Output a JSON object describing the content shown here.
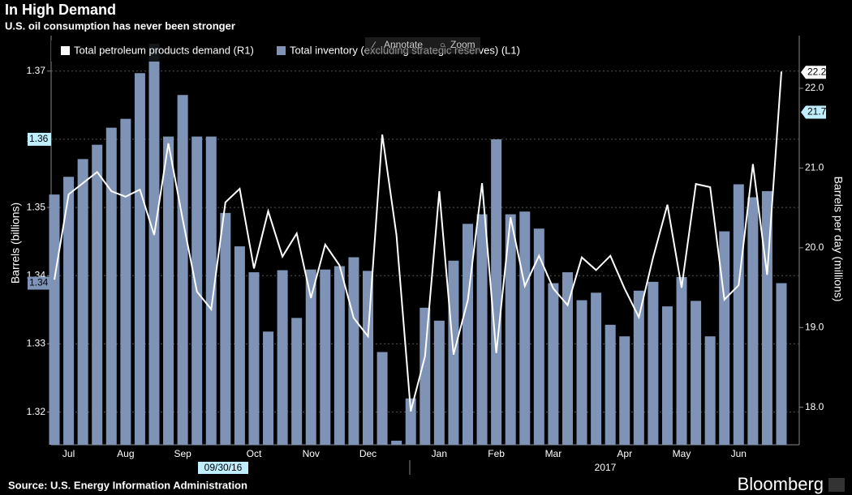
{
  "chart_data": {
    "type": "bar_line",
    "title": "In High Demand",
    "subtitle": "U.S. oil consumption has never been stronger",
    "y_label": "Barrels (billions)",
    "y2_label": "Barrels per day (millions)",
    "source": "Source: U.S. Energy Information Administration",
    "brand": "Bloomberg",
    "toolbar": [
      "Annotate",
      "Zoom"
    ],
    "year_label": "2017",
    "cursor_label": "09/30/16",
    "categories": [
      null,
      "Jul",
      null,
      null,
      null,
      "Aug",
      null,
      null,
      null,
      "Sep",
      null,
      null,
      null,
      null,
      "Oct",
      null,
      null,
      null,
      "Nov",
      null,
      null,
      null,
      "Dec",
      null,
      null,
      null,
      null,
      "Jan",
      null,
      null,
      null,
      "Feb",
      null,
      null,
      null,
      "Mar",
      null,
      null,
      null,
      null,
      "Apr",
      null,
      null,
      null,
      "May",
      null,
      null,
      null,
      "Jun",
      null,
      null,
      null
    ],
    "series": [
      {
        "name": "Total petroleum products demand (R1)",
        "color": "#ffffff",
        "axis": "y2",
        "kind": "line",
        "values": [
          19.6,
          20.67,
          20.81,
          20.95,
          20.71,
          20.64,
          20.73,
          20.16,
          21.31,
          20.36,
          19.45,
          19.23,
          20.57,
          20.74,
          19.74,
          20.46,
          19.89,
          20.18,
          19.37,
          20.04,
          19.78,
          19.12,
          18.89,
          21.42,
          20.16,
          17.95,
          18.64,
          20.71,
          18.66,
          19.34,
          20.81,
          18.68,
          20.38,
          19.52,
          19.9,
          19.49,
          19.28,
          19.88,
          19.72,
          19.9,
          19.49,
          19.13,
          19.88,
          20.54,
          19.5,
          20.8,
          20.76,
          19.35,
          19.53,
          21.05,
          19.66,
          22.21
        ]
      },
      {
        "name": "Total inventory (excluding strategic reserves) (L1)",
        "color": "#7f93b6",
        "axis": "y",
        "kind": "bar",
        "values": [
          1.3519,
          1.3545,
          1.3571,
          1.3592,
          1.3617,
          1.363,
          1.3697,
          1.374,
          1.3604,
          1.3665,
          1.3604,
          1.3604,
          1.3492,
          1.3443,
          1.3405,
          1.3318,
          1.3408,
          1.3338,
          1.3409,
          1.3409,
          1.3414,
          1.3427,
          1.3407,
          1.3288,
          1.3158,
          1.322,
          1.3353,
          1.3334,
          1.3422,
          1.3476,
          1.349,
          1.36,
          1.349,
          1.3494,
          1.3469,
          1.3389,
          1.3405,
          1.3364,
          1.3375,
          1.3328,
          1.3311,
          1.3378,
          1.3391,
          1.3355,
          1.3398,
          1.3363,
          1.3311,
          1.3465,
          1.3534,
          1.3515,
          1.3524,
          1.3389
        ]
      }
    ],
    "ylim": [
      1.3152,
      1.3752
    ],
    "yticks": [
      1.32,
      1.33,
      1.34,
      1.35,
      1.36,
      1.37
    ],
    "y2lim": [
      17.53,
      22.66
    ],
    "y2ticks": [
      {
        "value": 18,
        "label": "18.0"
      },
      {
        "value": 19,
        "label": "19.0"
      },
      {
        "value": 20,
        "label": "20.0"
      },
      {
        "value": 21,
        "label": "21.0"
      },
      {
        "value": 22,
        "label": "22.0"
      }
    ],
    "grid": true,
    "tags": [
      {
        "axis": "y",
        "value": 1.36,
        "label": "1.36",
        "color": "#bfefff"
      },
      {
        "axis": "y",
        "value": 1.3389,
        "label": "1.34",
        "color": "#7f93b6"
      },
      {
        "axis": "y2",
        "value": 22.2,
        "label": "22.2",
        "color": "#ffffff"
      },
      {
        "axis": "y2",
        "value": 21.7,
        "label": "21.7",
        "color": "#bfefff"
      }
    ]
  }
}
